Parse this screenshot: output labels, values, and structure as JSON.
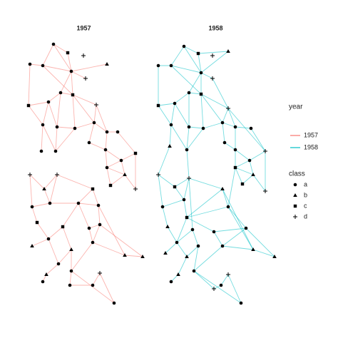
{
  "chart_data": {
    "type": "network",
    "color_legend_title": "year",
    "shape_legend_title": "class",
    "classes": [
      "a",
      "b",
      "c",
      "d"
    ],
    "ylim": [
      440,
      50
    ],
    "series": [
      {
        "name": "1957",
        "color": "#F8766D",
        "xlim": [
          30,
          205
        ],
        "nodes": [
          [
            42,
            90,
            "a"
          ],
          [
            60,
            92,
            "a"
          ],
          [
            75,
            62,
            "a"
          ],
          [
            95,
            74,
            "c"
          ],
          [
            117,
            78,
            "d"
          ],
          [
            150,
            90,
            "b"
          ],
          [
            100,
            100,
            "a"
          ],
          [
            120,
            110,
            "d"
          ],
          [
            40,
            148,
            "c"
          ],
          [
            68,
            143,
            "a"
          ],
          [
            85,
            130,
            "a"
          ],
          [
            102,
            133,
            "c"
          ],
          [
            135,
            147,
            "d"
          ],
          [
            60,
            175,
            "a"
          ],
          [
            80,
            178,
            "a"
          ],
          [
            105,
            180,
            "a"
          ],
          [
            132,
            172,
            "a"
          ],
          [
            150,
            185,
            "a"
          ],
          [
            165,
            185,
            "a"
          ],
          [
            58,
            212,
            "a"
          ],
          [
            78,
            212,
            "a"
          ],
          [
            125,
            200,
            "a"
          ],
          [
            148,
            210,
            "a"
          ],
          [
            170,
            225,
            "a"
          ],
          [
            190,
            215,
            "c"
          ],
          [
            150,
            235,
            "a"
          ],
          [
            175,
            245,
            "b"
          ],
          [
            155,
            260,
            "c"
          ],
          [
            190,
            265,
            "d"
          ],
          [
            42,
            245,
            "d"
          ],
          [
            80,
            245,
            "d"
          ],
          [
            62,
            265,
            "b"
          ],
          [
            130,
            265,
            "c"
          ],
          [
            45,
            290,
            "a"
          ],
          [
            70,
            285,
            "a"
          ],
          [
            110,
            285,
            "a"
          ],
          [
            138,
            288,
            "a"
          ],
          [
            52,
            312,
            "c"
          ],
          [
            88,
            318,
            "c"
          ],
          [
            125,
            320,
            "a"
          ],
          [
            140,
            315,
            "a"
          ],
          [
            68,
            335,
            "a"
          ],
          [
            100,
            350,
            "b"
          ],
          [
            130,
            340,
            "a"
          ],
          [
            45,
            345,
            "b"
          ],
          [
            82,
            370,
            "a"
          ],
          [
            175,
            358,
            "b"
          ],
          [
            200,
            360,
            "b"
          ],
          [
            65,
            385,
            "b"
          ],
          [
            100,
            380,
            "a"
          ],
          [
            140,
            383,
            "d"
          ],
          [
            60,
            395,
            "a"
          ],
          [
            98,
            400,
            "a"
          ],
          [
            130,
            400,
            "a"
          ],
          [
            160,
            425,
            "a"
          ]
        ],
        "edges": [
          [
            0,
            1
          ],
          [
            1,
            2
          ],
          [
            1,
            6
          ],
          [
            2,
            3
          ],
          [
            2,
            6
          ],
          [
            3,
            6
          ],
          [
            6,
            10
          ],
          [
            6,
            11
          ],
          [
            6,
            7
          ],
          [
            10,
            11
          ],
          [
            9,
            10
          ],
          [
            8,
            9
          ],
          [
            8,
            13
          ],
          [
            9,
            13
          ],
          [
            9,
            14
          ],
          [
            10,
            14
          ],
          [
            11,
            15
          ],
          [
            11,
            16
          ],
          [
            11,
            12
          ],
          [
            12,
            16
          ],
          [
            15,
            16
          ],
          [
            14,
            15
          ],
          [
            13,
            19
          ],
          [
            13,
            20
          ],
          [
            14,
            20
          ],
          [
            15,
            20
          ],
          [
            16,
            17
          ],
          [
            16,
            21
          ],
          [
            17,
            18
          ],
          [
            17,
            22
          ],
          [
            18,
            24
          ],
          [
            21,
            22
          ],
          [
            22,
            23
          ],
          [
            23,
            24
          ],
          [
            22,
            25
          ],
          [
            23,
            25
          ],
          [
            25,
            26
          ],
          [
            24,
            28
          ],
          [
            26,
            27
          ],
          [
            25,
            27
          ],
          [
            23,
            26
          ],
          [
            26,
            28
          ],
          [
            1,
            11
          ],
          [
            0,
            8
          ],
          [
            5,
            6
          ],
          [
            12,
            17
          ],
          [
            29,
            31
          ],
          [
            29,
            33
          ],
          [
            30,
            31
          ],
          [
            30,
            34
          ],
          [
            31,
            34
          ],
          [
            33,
            34
          ],
          [
            34,
            35
          ],
          [
            32,
            35
          ],
          [
            32,
            36
          ],
          [
            35,
            36
          ],
          [
            35,
            39
          ],
          [
            36,
            40
          ],
          [
            39,
            40
          ],
          [
            37,
            41
          ],
          [
            33,
            37
          ],
          [
            38,
            41
          ],
          [
            38,
            42
          ],
          [
            39,
            43
          ],
          [
            40,
            43
          ],
          [
            41,
            44
          ],
          [
            41,
            45
          ],
          [
            42,
            45
          ],
          [
            42,
            49
          ],
          [
            43,
            49
          ],
          [
            43,
            46
          ],
          [
            46,
            47
          ],
          [
            45,
            48
          ],
          [
            48,
            51
          ],
          [
            49,
            52
          ],
          [
            52,
            53
          ],
          [
            50,
            53
          ],
          [
            50,
            54
          ],
          [
            49,
            54
          ],
          [
            30,
            32
          ],
          [
            38,
            35
          ],
          [
            36,
            46
          ],
          [
            47,
            40
          ]
        ]
      },
      {
        "name": "1958",
        "color": "#00BFC4",
        "xlim": [
          215,
          390
        ],
        "nodes": [
          [
            222,
            92,
            "a"
          ],
          [
            240,
            92,
            "a"
          ],
          [
            258,
            65,
            "a"
          ],
          [
            278,
            75,
            "c"
          ],
          [
            298,
            78,
            "d"
          ],
          [
            320,
            72,
            "b"
          ],
          [
            282,
            102,
            "a"
          ],
          [
            298,
            110,
            "d"
          ],
          [
            222,
            148,
            "c"
          ],
          [
            245,
            145,
            "a"
          ],
          [
            265,
            130,
            "a"
          ],
          [
            282,
            132,
            "c"
          ],
          [
            320,
            152,
            "d"
          ],
          [
            240,
            175,
            "a"
          ],
          [
            265,
            178,
            "a"
          ],
          [
            285,
            180,
            "a"
          ],
          [
            312,
            172,
            "a"
          ],
          [
            330,
            178,
            "a"
          ],
          [
            352,
            180,
            "a"
          ],
          [
            238,
            205,
            "b"
          ],
          [
            262,
            210,
            "a"
          ],
          [
            315,
            200,
            "a"
          ],
          [
            330,
            210,
            "a"
          ],
          [
            350,
            225,
            "a"
          ],
          [
            372,
            212,
            "d"
          ],
          [
            330,
            235,
            "c"
          ],
          [
            355,
            245,
            "b"
          ],
          [
            340,
            258,
            "c"
          ],
          [
            372,
            268,
            "d"
          ],
          [
            222,
            245,
            "d"
          ],
          [
            265,
            250,
            "d"
          ],
          [
            245,
            262,
            "c"
          ],
          [
            312,
            265,
            "b"
          ],
          [
            228,
            290,
            "a"
          ],
          [
            258,
            280,
            "a"
          ],
          [
            262,
            305,
            "c"
          ],
          [
            320,
            290,
            "a"
          ],
          [
            235,
            318,
            "b"
          ],
          [
            270,
            322,
            "a"
          ],
          [
            300,
            325,
            "a"
          ],
          [
            345,
            320,
            "a"
          ],
          [
            248,
            340,
            "a"
          ],
          [
            278,
            345,
            "a"
          ],
          [
            312,
            345,
            "a"
          ],
          [
            232,
            355,
            "b"
          ],
          [
            262,
            360,
            "b"
          ],
          [
            355,
            350,
            "b"
          ],
          [
            385,
            360,
            "b"
          ],
          [
            250,
            385,
            "b"
          ],
          [
            272,
            380,
            "a"
          ],
          [
            320,
            385,
            "d"
          ],
          [
            240,
            395,
            "a"
          ],
          [
            300,
            405,
            "d"
          ],
          [
            310,
            400,
            "a"
          ],
          [
            338,
            425,
            "a"
          ]
        ],
        "edges": [
          [
            0,
            1
          ],
          [
            1,
            2
          ],
          [
            1,
            6
          ],
          [
            2,
            3
          ],
          [
            2,
            6
          ],
          [
            3,
            6
          ],
          [
            3,
            5
          ],
          [
            6,
            10
          ],
          [
            6,
            11
          ],
          [
            6,
            7
          ],
          [
            7,
            12
          ],
          [
            10,
            11
          ],
          [
            9,
            10
          ],
          [
            8,
            9
          ],
          [
            8,
            13
          ],
          [
            9,
            13
          ],
          [
            9,
            14
          ],
          [
            10,
            14
          ],
          [
            11,
            15
          ],
          [
            11,
            16
          ],
          [
            11,
            12
          ],
          [
            12,
            16
          ],
          [
            12,
            24
          ],
          [
            15,
            16
          ],
          [
            14,
            15
          ],
          [
            13,
            19
          ],
          [
            13,
            20
          ],
          [
            14,
            20
          ],
          [
            15,
            20
          ],
          [
            16,
            17
          ],
          [
            16,
            21
          ],
          [
            17,
            18
          ],
          [
            17,
            22
          ],
          [
            18,
            24
          ],
          [
            21,
            22
          ],
          [
            22,
            23
          ],
          [
            23,
            24
          ],
          [
            22,
            25
          ],
          [
            23,
            25
          ],
          [
            25,
            26
          ],
          [
            24,
            28
          ],
          [
            26,
            27
          ],
          [
            25,
            27
          ],
          [
            23,
            26
          ],
          [
            26,
            28
          ],
          [
            1,
            11
          ],
          [
            0,
            8
          ],
          [
            5,
            6
          ],
          [
            12,
            17
          ],
          [
            19,
            29
          ],
          [
            29,
            31
          ],
          [
            29,
            33
          ],
          [
            30,
            31
          ],
          [
            30,
            34
          ],
          [
            31,
            34
          ],
          [
            33,
            34
          ],
          [
            34,
            35
          ],
          [
            32,
            35
          ],
          [
            32,
            36
          ],
          [
            35,
            36
          ],
          [
            35,
            39
          ],
          [
            35,
            41
          ],
          [
            36,
            40
          ],
          [
            39,
            40
          ],
          [
            37,
            41
          ],
          [
            33,
            37
          ],
          [
            38,
            41
          ],
          [
            38,
            42
          ],
          [
            39,
            43
          ],
          [
            40,
            43
          ],
          [
            41,
            44
          ],
          [
            41,
            45
          ],
          [
            42,
            45
          ],
          [
            42,
            49
          ],
          [
            43,
            49
          ],
          [
            43,
            46
          ],
          [
            46,
            47
          ],
          [
            45,
            48
          ],
          [
            48,
            51
          ],
          [
            49,
            52
          ],
          [
            52,
            53
          ],
          [
            50,
            53
          ],
          [
            50,
            54
          ],
          [
            49,
            54
          ],
          [
            30,
            32
          ],
          [
            30,
            38
          ],
          [
            36,
            46
          ],
          [
            47,
            40
          ],
          [
            32,
            46
          ],
          [
            25,
            36
          ],
          [
            20,
            30
          ]
        ]
      }
    ]
  }
}
